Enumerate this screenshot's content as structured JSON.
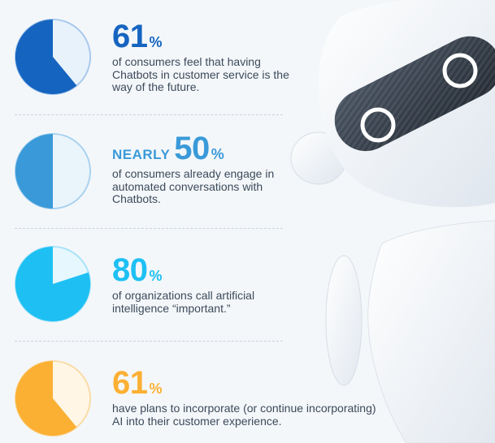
{
  "stats": [
    {
      "prefix": "",
      "number": "61",
      "suffix": "%",
      "description": "of consumers feel that having Chatbots in customer service is the way of the future.",
      "fraction": 0.61,
      "color": "#1565c0",
      "light": "#e8f2fb",
      "stroke": "#a8c8ec"
    },
    {
      "prefix": "NEARLY ",
      "number": "50",
      "suffix": "%",
      "description": "of consumers already engage in automated conversations with Chatbots.",
      "fraction": 0.5,
      "color": "#3a9ad9",
      "light": "#e9f4fb",
      "stroke": "#a9d2ef"
    },
    {
      "prefix": "",
      "number": "80",
      "suffix": "%",
      "description": "of organizations call artificial intelligence “important.”",
      "fraction": 0.8,
      "color": "#1ec0f3",
      "light": "#e6f8fe",
      "stroke": "#a6e3f8"
    },
    {
      "prefix": "",
      "number": "61",
      "suffix": "%",
      "description": "have plans to incorporate (or continue incorporating) AI into their customer experience.",
      "fraction": 0.61,
      "color": "#fbb034",
      "light": "#fff6e6",
      "stroke": "#f9dca5"
    }
  ],
  "illustration": "chatbot-robot"
}
